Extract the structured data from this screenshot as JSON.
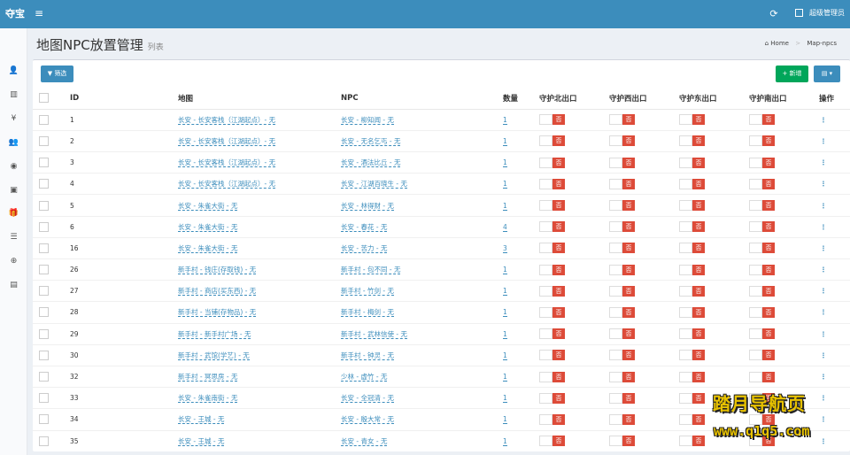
{
  "app": {
    "logo": "夺宝",
    "menu_icon": "bars-icon"
  },
  "topbar": {
    "refresh_icon": "refresh-icon",
    "user_icon": "user-card-icon",
    "user_name": "超级管理员"
  },
  "sidebar": {
    "items": [
      {
        "name": "user-add",
        "glyph": "👤"
      },
      {
        "name": "bar-chart",
        "glyph": "▥"
      },
      {
        "name": "yen",
        "glyph": "¥"
      },
      {
        "name": "users",
        "glyph": "👥"
      },
      {
        "name": "dashboard",
        "glyph": "◉"
      },
      {
        "name": "gamepad",
        "glyph": "▣"
      },
      {
        "name": "gift",
        "glyph": "🎁"
      },
      {
        "name": "list",
        "glyph": "☰"
      },
      {
        "name": "search-plus",
        "glyph": "⊕"
      },
      {
        "name": "database",
        "glyph": "▤"
      }
    ]
  },
  "header": {
    "title": "地图NPC放置管理",
    "subtitle": "列表",
    "crumb_home": "Home",
    "crumb_current": "Map-npcs"
  },
  "toolbar": {
    "filter_label": "筛选",
    "new_label": "新增",
    "columns_icon": "table-columns-icon"
  },
  "table": {
    "columns": [
      "ID",
      "地图",
      "NPC",
      "数量",
      "守护北出口",
      "守护西出口",
      "守护东出口",
      "守护南出口",
      "操作"
    ],
    "toggle_off_label": "否",
    "rows": [
      {
        "id": "1",
        "map": "长安 - 长安客栈（江湖起点）- 无",
        "npc": "长安 - 柳知闻 - 无",
        "qty": "1"
      },
      {
        "id": "2",
        "map": "长安 - 长安客栈（江湖起点）- 无",
        "npc": "长安 - 无名乞丐 - 无",
        "qty": "1"
      },
      {
        "id": "3",
        "map": "长安 - 长安客栈（江湖起点）- 无",
        "npc": "长安 - 酒法比丘 - 无",
        "qty": "1"
      },
      {
        "id": "4",
        "map": "长安 - 长安客栈（江湖起点）- 无",
        "npc": "长安 - 江湖百晓生 - 无",
        "qty": "1"
      },
      {
        "id": "5",
        "map": "长安 - 朱雀大街 - 无",
        "npc": "长安 - 林得财 - 无",
        "qty": "1"
      },
      {
        "id": "6",
        "map": "长安 - 朱雀大街 - 无",
        "npc": "长安 - 春花 - 无",
        "qty": "4"
      },
      {
        "id": "16",
        "map": "长安 - 朱雀大街 - 无",
        "npc": "长安 - 苦力 - 无",
        "qty": "3"
      },
      {
        "id": "26",
        "map": "新手村 - 钱庄(存取钱) - 无",
        "npc": "新手村 - 包不同 - 无",
        "qty": "1"
      },
      {
        "id": "27",
        "map": "新手村 - 商店(买东西) - 无",
        "npc": "新手村 - 竹剑 - 无",
        "qty": "1"
      },
      {
        "id": "28",
        "map": "新手村 - 当铺(存物品) - 无",
        "npc": "新手村 - 梅剑 - 无",
        "qty": "1"
      },
      {
        "id": "29",
        "map": "新手村 - 新手村广场 - 无",
        "npc": "新手村 - 武林信使 - 无",
        "qty": "1"
      },
      {
        "id": "30",
        "map": "新手村 - 武馆(学艺) - 无",
        "npc": "新手村 - 钟灵 - 无",
        "qty": "1"
      },
      {
        "id": "32",
        "map": "新手村 - 冥思房 - 无",
        "npc": "少林 - 虚竹 - 无",
        "qty": "1"
      },
      {
        "id": "33",
        "map": "长安 - 朱雀南街 - 无",
        "npc": "长安 - 全冠清 - 无",
        "qty": "1"
      },
      {
        "id": "34",
        "map": "长安 - 王城 - 无",
        "npc": "长安 - 殷大常 - 无",
        "qty": "1"
      },
      {
        "id": "35",
        "map": "长安 - 王城 - 无",
        "npc": "长安 - 青女 - 无",
        "qty": "1"
      }
    ]
  },
  "watermark": {
    "line1": "踏月导航页",
    "line2": "www.q1q5.com"
  }
}
